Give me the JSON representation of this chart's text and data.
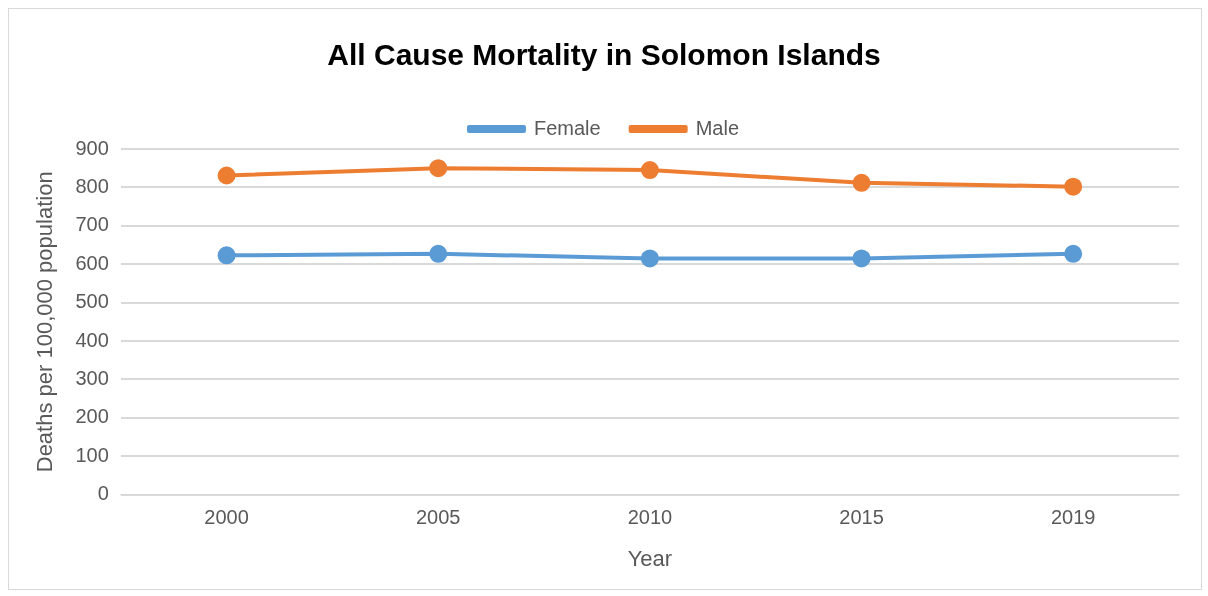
{
  "chart_data": {
    "type": "line",
    "title": "All Cause Mortality in Solomon Islands",
    "xlabel": "Year",
    "ylabel": "Deaths per 100,000 population",
    "categories": [
      "2000",
      "2005",
      "2010",
      "2015",
      "2019"
    ],
    "series": [
      {
        "name": "Female",
        "color": "#5b9bd5",
        "values": [
          623,
          627,
          615,
          615,
          627
        ]
      },
      {
        "name": "Male",
        "color": "#ed7d31",
        "values": [
          831,
          850,
          845,
          812,
          802
        ]
      }
    ],
    "ylim": [
      0,
      900
    ],
    "yticks": [
      0,
      100,
      200,
      300,
      400,
      500,
      600,
      700,
      800,
      900
    ],
    "grid": "y",
    "legend": "top",
    "marker": "circle"
  }
}
